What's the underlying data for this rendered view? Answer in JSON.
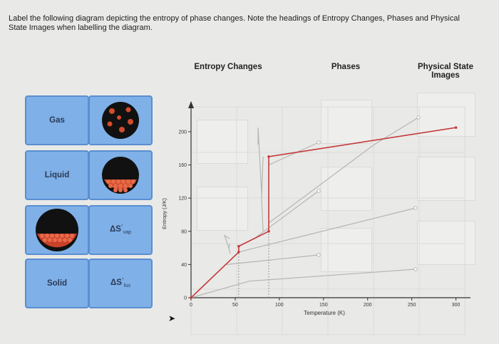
{
  "instructions": "Label the following diagram depicting the entropy of phase changes. Note the headings of Entropy Changes, Phases and Physical State Images when labelling the diagram.",
  "headers": {
    "entropy_changes": "Entropy Changes",
    "phases": "Phases",
    "physical_state_images": "Physical State Images"
  },
  "tiles": {
    "gas": "Gas",
    "liquid": "Liquid",
    "solid": "Solid",
    "delta_s_vap": "ΔS°vap",
    "delta_s_fus": "ΔS°fus"
  },
  "chart_data": {
    "type": "line",
    "xlabel": "Temperature (K)",
    "ylabel": "Entropy (J/K)",
    "xlim": [
      0,
      310
    ],
    "ylim": [
      0,
      230
    ],
    "x_ticks": [
      0,
      50,
      100,
      150,
      200,
      250,
      300
    ],
    "y_ticks": [
      0,
      40,
      80,
      120,
      160,
      200
    ],
    "series": [
      {
        "color": "#c43a3a",
        "segments": [
          [
            [
              0,
              0
            ],
            [
              54,
              55
            ]
          ],
          [
            [
              54,
              62
            ],
            [
              88,
              80
            ]
          ],
          [
            [
              88,
              170
            ],
            [
              300,
              205
            ]
          ]
        ]
      }
    ],
    "leader_lines_color": "#b5b5b5"
  }
}
